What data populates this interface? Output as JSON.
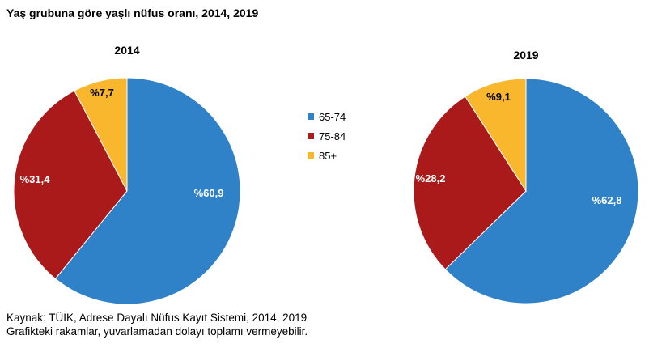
{
  "title": "Yaş grubuna göre yaşlı nüfus oranı, 2014, 2019",
  "colors": {
    "65-74": "#2f82c8",
    "75-84": "#ab1a1a",
    "85+": "#f8b72d"
  },
  "chart_data": [
    {
      "type": "pie",
      "title": "2014",
      "categories": [
        "65-74",
        "75-84",
        "85+"
      ],
      "values": [
        60.9,
        31.4,
        7.7
      ],
      "labels": [
        "%60,9",
        "%31,4",
        "%7,7"
      ]
    },
    {
      "type": "pie",
      "title": "2019",
      "categories": [
        "65-74",
        "75-84",
        "85+"
      ],
      "values": [
        62.8,
        28.2,
        9.1
      ],
      "labels": [
        "%62,8",
        "%28,2",
        "%9,1"
      ]
    }
  ],
  "legend": [
    "65-74",
    "75-84",
    "85+"
  ],
  "footer": {
    "source": "Kaynak: TÜİK, Adrese Dayalı Nüfus Kayıt Sistemi, 2014, 2019",
    "note": "Grafikteki rakamlar, yuvarlamadan dolayı toplamı vermeyebilir."
  }
}
